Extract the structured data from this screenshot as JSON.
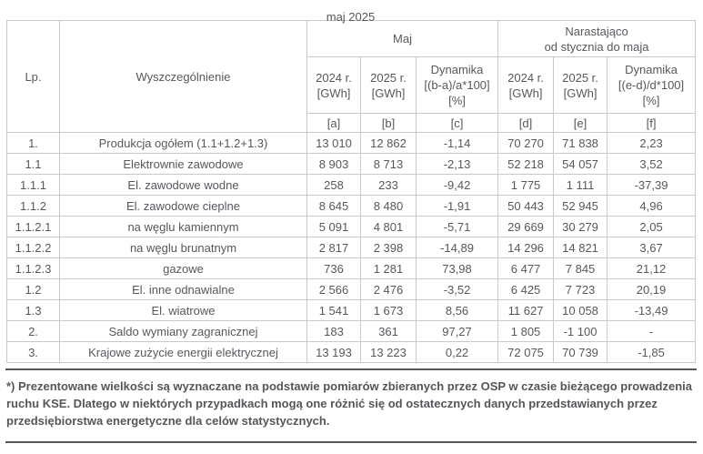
{
  "page": {
    "title": "maj 2025"
  },
  "table": {
    "headers": {
      "lp": "Lp.",
      "spec": "Wyszczególnienie",
      "group_month": "Maj",
      "group_cumulative": "Narastająco\nod stycznia do maja",
      "sub": [
        "2024 r.\n[GWh]",
        "2025 r.\n[GWh]",
        "Dynamika\n[(b-a)/a*100]\n[%]",
        "2024 r.\n[GWh]",
        "2025 r.\n[GWh]",
        "Dynamika\n[(e-d)/d*100]\n[%]"
      ],
      "letters": [
        "[a]",
        "[b]",
        "[c]",
        "[d]",
        "[e]",
        "[f]"
      ]
    },
    "rows": [
      {
        "lp": "1.",
        "name": "Produkcja ogółem (1.1+1.2+1.3)",
        "values": [
          "13 010",
          "12 862",
          "-1,14",
          "70 270",
          "71 838",
          "2,23"
        ]
      },
      {
        "lp": "1.1",
        "name": "Elektrownie zawodowe",
        "values": [
          "8 903",
          "8 713",
          "-2,13",
          "52 218",
          "54 057",
          "3,52"
        ]
      },
      {
        "lp": "1.1.1",
        "name": "El. zawodowe wodne",
        "values": [
          "258",
          "233",
          "-9,42",
          "1 775",
          "1 111",
          "-37,39"
        ]
      },
      {
        "lp": "1.1.2",
        "name": "El. zawodowe cieplne",
        "values": [
          "8 645",
          "8 480",
          "-1,91",
          "50 443",
          "52 945",
          "4,96"
        ]
      },
      {
        "lp": "1.1.2.1",
        "name": "na węglu kamiennym",
        "values": [
          "5 091",
          "4 801",
          "-5,71",
          "29 669",
          "30 279",
          "2,05"
        ]
      },
      {
        "lp": "1.1.2.2",
        "name": "na węglu brunatnym",
        "values": [
          "2 817",
          "2 398",
          "-14,89",
          "14 296",
          "14 821",
          "3,67"
        ]
      },
      {
        "lp": "1.1.2.3",
        "name": "gazowe",
        "values": [
          "736",
          "1 281",
          "73,98",
          "6 477",
          "7 845",
          "21,12"
        ]
      },
      {
        "lp": "1.2",
        "name": "El. inne odnawialne",
        "values": [
          "2 566",
          "2 476",
          "-3,52",
          "6 425",
          "7 723",
          "20,19"
        ]
      },
      {
        "lp": "1.3",
        "name": "El. wiatrowe",
        "values": [
          "1 541",
          "1 673",
          "8,56",
          "11 627",
          "10 058",
          "-13,49"
        ]
      },
      {
        "lp": "2.",
        "name": "Saldo wymiany zagranicznej",
        "values": [
          "183",
          "361",
          "97,27",
          "1 805",
          "-1 100",
          "-"
        ]
      },
      {
        "lp": "3.",
        "name": "Krajowe zużycie energii elektrycznej",
        "values": [
          "13 193",
          "13 223",
          "0,22",
          "72 075",
          "70 739",
          "-1,85"
        ]
      }
    ]
  },
  "footnote": {
    "text": "*) Prezentowane wielkości są wyznaczane na podstawie pomiarów zbieranych przez OSP w czasie bieżącego prowadzenia ruchu KSE. Dlatego w niektórych przypadkach mogą one różnić się od ostatecznych danych przedstawianych przez przedsiębiorstwa energetyczne dla celów statystycznych."
  },
  "colors": {
    "text": "#55585e",
    "table_border": "#c9c9c9",
    "divider": "#55585e",
    "background": "#ffffff"
  }
}
